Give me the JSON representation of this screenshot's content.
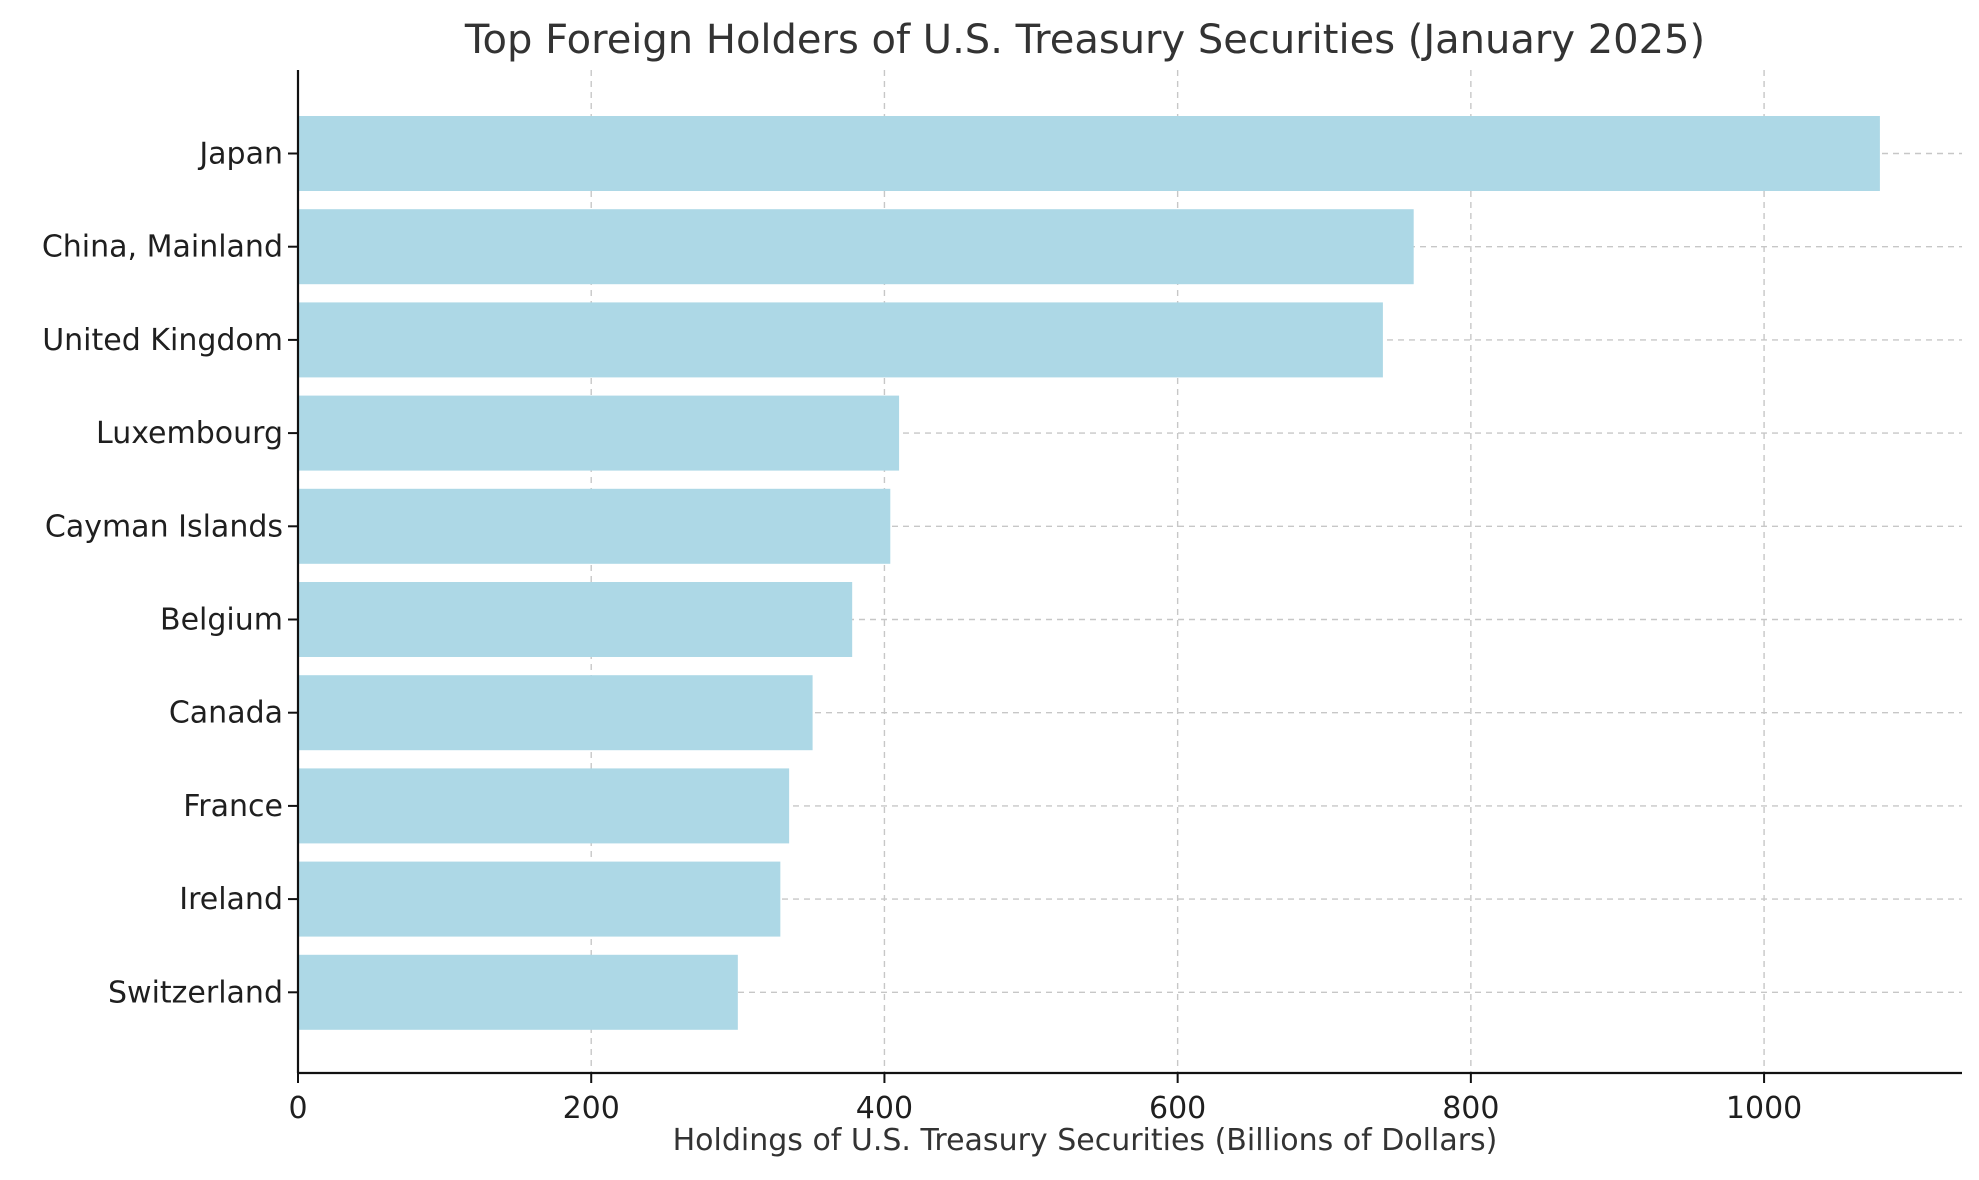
{
  "chart_data": {
    "type": "bar",
    "orientation": "horizontal",
    "title": "Top Foreign Holders of U.S. Treasury Securities (January 2025)",
    "xlabel": "Holdings of U.S. Treasury Securities (Billions of Dollars)",
    "ylabel": "",
    "categories": [
      "Japan",
      "China, Mainland",
      "United Kingdom",
      "Luxembourg",
      "Cayman Islands",
      "Belgium",
      "Canada",
      "France",
      "Ireland",
      "Switzerland"
    ],
    "values": [
      1079,
      761,
      740,
      410,
      404,
      378,
      351,
      335,
      329,
      300
    ],
    "xlim": [
      0,
      1135
    ],
    "xticks": [
      0,
      200,
      400,
      600,
      800,
      1000
    ],
    "xtick_labels": [
      "0",
      "200",
      "400",
      "600",
      "800",
      "1000"
    ],
    "grid": true,
    "bar_color": "#add8e6"
  }
}
